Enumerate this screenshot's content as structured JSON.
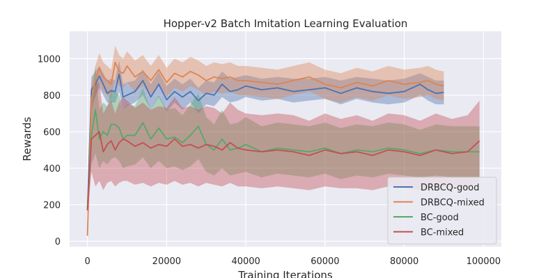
{
  "chart_data": {
    "type": "line",
    "title": "Hopper-v2 Batch Imitation Learning Evaluation",
    "xlabel": "Training Iterations",
    "ylabel": "Rewards",
    "xlim": [
      -4500,
      104500
    ],
    "ylim": [
      -30,
      1150
    ],
    "xticks": [
      0,
      20000,
      40000,
      60000,
      80000,
      100000
    ],
    "yticks": [
      0,
      200,
      400,
      600,
      800,
      1000
    ],
    "grid": true,
    "shaded_band": true,
    "legend_position": "lower-right",
    "series": [
      {
        "name": "DRBCQ-good",
        "color": "#4c72b0",
        "x": [
          0,
          1000,
          2000,
          3000,
          4000,
          5000,
          6000,
          7000,
          8000,
          9000,
          10000,
          12000,
          14000,
          16000,
          18000,
          20000,
          22000,
          24000,
          26000,
          28000,
          30000,
          32000,
          34000,
          36000,
          38000,
          40000,
          44000,
          48000,
          52000,
          56000,
          60000,
          64000,
          68000,
          72000,
          76000,
          80000,
          84000,
          86000,
          88000,
          90000
        ],
        "y": [
          170,
          830,
          860,
          905,
          860,
          810,
          825,
          820,
          915,
          790,
          800,
          820,
          880,
          790,
          860,
          775,
          820,
          790,
          820,
          770,
          810,
          800,
          860,
          820,
          830,
          850,
          830,
          840,
          820,
          830,
          840,
          810,
          840,
          820,
          810,
          820,
          860,
          830,
          810,
          815
        ],
        "lower": [
          120,
          750,
          790,
          840,
          800,
          760,
          760,
          760,
          820,
          720,
          740,
          760,
          800,
          720,
          790,
          710,
          760,
          720,
          760,
          700,
          750,
          740,
          790,
          760,
          770,
          790,
          770,
          780,
          760,
          770,
          780,
          750,
          780,
          760,
          750,
          760,
          800,
          770,
          750,
          750
        ],
        "upper": [
          220,
          900,
          930,
          960,
          920,
          880,
          890,
          880,
          990,
          860,
          870,
          880,
          940,
          860,
          930,
          850,
          890,
          860,
          890,
          840,
          880,
          870,
          930,
          890,
          900,
          910,
          890,
          900,
          890,
          890,
          900,
          880,
          900,
          890,
          880,
          890,
          920,
          900,
          880,
          880
        ]
      },
      {
        "name": "DRBCQ-mixed",
        "color": "#dd8452",
        "x": [
          0,
          1000,
          2000,
          3000,
          4000,
          5000,
          6000,
          7000,
          8000,
          9000,
          10000,
          12000,
          14000,
          16000,
          18000,
          20000,
          22000,
          24000,
          26000,
          28000,
          30000,
          32000,
          34000,
          36000,
          38000,
          40000,
          44000,
          48000,
          52000,
          56000,
          60000,
          64000,
          68000,
          72000,
          76000,
          80000,
          84000,
          86000,
          88000,
          90000
        ],
        "y": [
          30,
          780,
          880,
          950,
          900,
          880,
          860,
          980,
          930,
          920,
          960,
          900,
          930,
          880,
          940,
          870,
          920,
          900,
          930,
          910,
          880,
          900,
          890,
          900,
          880,
          880,
          870,
          860,
          880,
          900,
          860,
          840,
          870,
          850,
          880,
          860,
          870,
          880,
          860,
          850
        ],
        "lower": [
          20,
          700,
          800,
          870,
          820,
          800,
          780,
          880,
          850,
          840,
          870,
          820,
          850,
          800,
          860,
          790,
          840,
          820,
          850,
          830,
          800,
          820,
          810,
          820,
          800,
          800,
          790,
          780,
          800,
          820,
          780,
          760,
          790,
          770,
          800,
          780,
          790,
          800,
          780,
          770
        ],
        "upper": [
          40,
          860,
          960,
          1030,
          980,
          960,
          940,
          1070,
          1020,
          1000,
          1040,
          990,
          1020,
          960,
          1020,
          950,
          1000,
          980,
          1010,
          990,
          960,
          980,
          970,
          980,
          960,
          960,
          950,
          940,
          960,
          980,
          940,
          920,
          950,
          930,
          960,
          940,
          950,
          960,
          940,
          930
        ]
      },
      {
        "name": "BC-good",
        "color": "#55a868",
        "x": [
          0,
          1000,
          2000,
          3000,
          4000,
          5000,
          6000,
          7000,
          8000,
          9000,
          10000,
          12000,
          14000,
          16000,
          18000,
          20000,
          22000,
          24000,
          26000,
          28000,
          30000,
          32000,
          34000,
          36000,
          38000,
          40000,
          44000,
          48000,
          52000,
          56000,
          60000,
          64000,
          68000,
          72000,
          76000,
          80000,
          84000,
          88000,
          92000,
          96000,
          99000
        ],
        "y": [
          180,
          580,
          720,
          560,
          600,
          580,
          640,
          640,
          620,
          560,
          580,
          580,
          650,
          560,
          620,
          560,
          570,
          540,
          580,
          630,
          530,
          500,
          560,
          500,
          510,
          530,
          490,
          510,
          500,
          490,
          510,
          480,
          500,
          490,
          510,
          500,
          480,
          500,
          490,
          490,
          490
        ],
        "lower": [
          150,
          420,
          480,
          400,
          440,
          420,
          450,
          460,
          440,
          400,
          410,
          420,
          460,
          400,
          440,
          400,
          410,
          390,
          410,
          450,
          380,
          360,
          400,
          360,
          370,
          380,
          350,
          370,
          360,
          350,
          370,
          340,
          360,
          350,
          370,
          360,
          350,
          360,
          350,
          350,
          350
        ],
        "upper": [
          210,
          740,
          960,
          720,
          760,
          740,
          830,
          820,
          800,
          720,
          750,
          740,
          840,
          720,
          800,
          720,
          730,
          690,
          750,
          810,
          680,
          640,
          720,
          640,
          650,
          680,
          630,
          650,
          640,
          630,
          650,
          620,
          640,
          630,
          650,
          640,
          610,
          640,
          630,
          630,
          630
        ]
      },
      {
        "name": "BC-mixed",
        "color": "#c44e52",
        "x": [
          0,
          1000,
          2000,
          3000,
          4000,
          5000,
          6000,
          7000,
          8000,
          9000,
          10000,
          12000,
          14000,
          16000,
          18000,
          20000,
          22000,
          24000,
          26000,
          28000,
          30000,
          32000,
          34000,
          36000,
          38000,
          40000,
          44000,
          48000,
          52000,
          56000,
          60000,
          64000,
          68000,
          72000,
          76000,
          80000,
          84000,
          88000,
          92000,
          96000,
          99000
        ],
        "y": [
          170,
          560,
          580,
          600,
          490,
          530,
          550,
          500,
          540,
          560,
          550,
          520,
          540,
          510,
          530,
          520,
          560,
          520,
          530,
          510,
          530,
          520,
          500,
          540,
          510,
          500,
          490,
          500,
          490,
          470,
          500,
          480,
          490,
          470,
          500,
          490,
          470,
          500,
          480,
          490,
          550
        ],
        "lower": [
          130,
          380,
          300,
          330,
          280,
          320,
          330,
          300,
          320,
          330,
          330,
          310,
          320,
          300,
          320,
          310,
          330,
          310,
          320,
          300,
          320,
          310,
          300,
          320,
          300,
          300,
          290,
          300,
          290,
          280,
          300,
          290,
          290,
          280,
          300,
          290,
          280,
          300,
          290,
          290,
          330
        ],
        "upper": [
          210,
          740,
          860,
          870,
          700,
          740,
          770,
          700,
          760,
          790,
          770,
          730,
          760,
          720,
          740,
          730,
          790,
          730,
          740,
          720,
          740,
          730,
          700,
          760,
          720,
          700,
          690,
          700,
          690,
          660,
          700,
          670,
          690,
          660,
          700,
          690,
          660,
          700,
          670,
          690,
          770
        ]
      }
    ]
  }
}
